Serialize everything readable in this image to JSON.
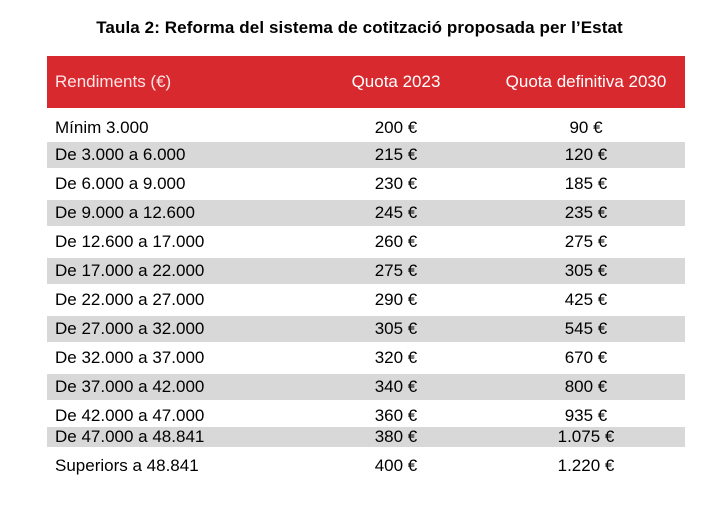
{
  "title": "Taula 2: Reforma del sistema de cotització proposada per l’Estat",
  "colors": {
    "header_bg": "#d8292f",
    "header_text": "#ffffff",
    "stripe": "#d8d8d8"
  },
  "table": {
    "headers": [
      "Rendiments (€)",
      "Quota 2023",
      "Quota definitiva 2030"
    ],
    "rows": [
      [
        "Mínim 3.000",
        "200 €",
        "90 €"
      ],
      [
        "De 3.000 a 6.000",
        "215 €",
        "120 €"
      ],
      [
        "De 6.000 a 9.000",
        "230 €",
        "185 €"
      ],
      [
        "De 9.000 a 12.600",
        "245 €",
        "235 €"
      ],
      [
        "De 12.600 a 17.000",
        "260 €",
        "275 €"
      ],
      [
        "De 17.000 a 22.000",
        "275 €",
        "305 €"
      ],
      [
        "De 22.000 a 27.000",
        "290 €",
        "425 €"
      ],
      [
        "De 27.000 a 32.000",
        "305 €",
        "545 €"
      ],
      [
        "De 32.000 a 37.000",
        "320 €",
        "670 €"
      ],
      [
        "De 37.000 a 42.000",
        "340 €",
        "800 €"
      ],
      [
        "De 42.000 a 47.000",
        "360 €",
        "935 €"
      ],
      [
        "De 47.000 a 48.841",
        "380 €",
        "1.075 €"
      ],
      [
        "Superiors a 48.841",
        "400 €",
        "1.220 €"
      ]
    ]
  }
}
